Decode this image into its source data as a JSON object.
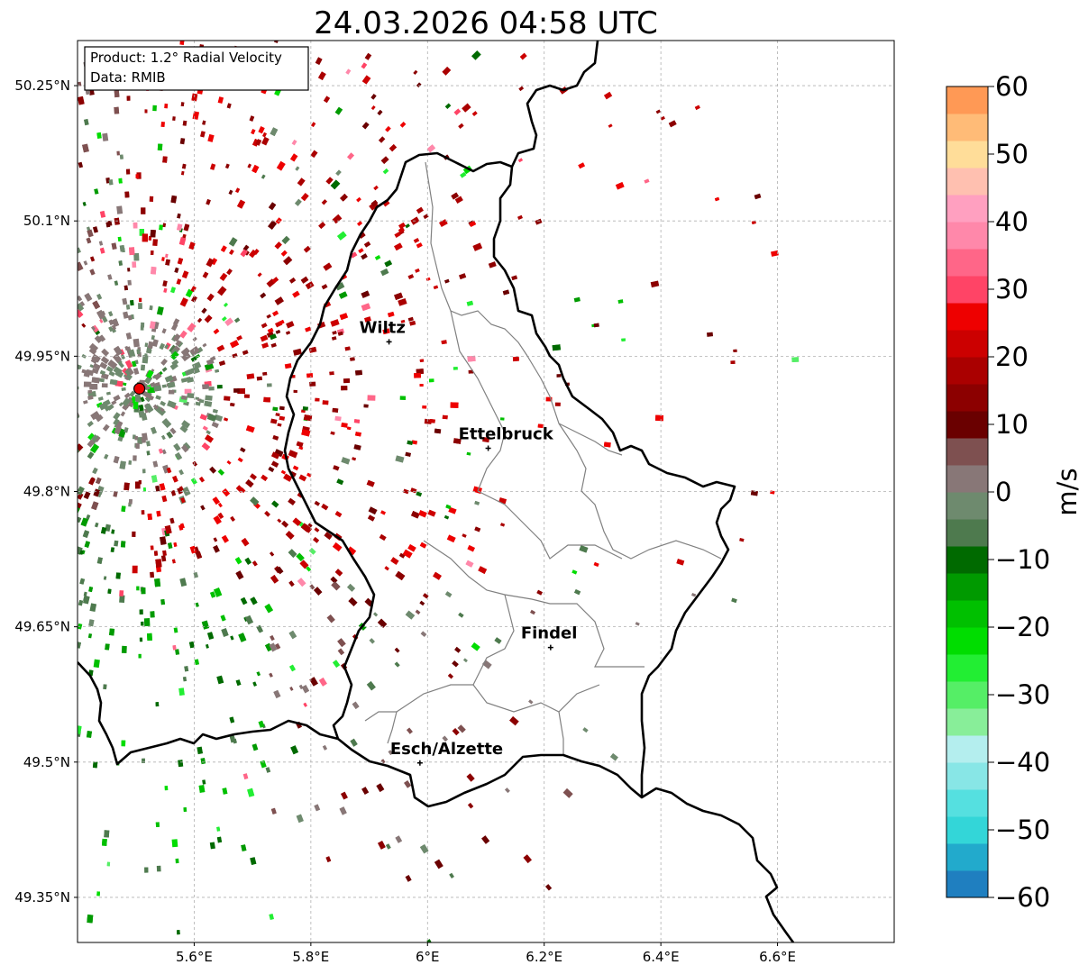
{
  "title": "24.03.2026 04:58 UTC",
  "info_box": {
    "product": "Product: 1.2° Radial Velocity",
    "data": "Data: RMIB"
  },
  "map": {
    "lon_range": [
      5.4,
      6.8
    ],
    "lat_range": [
      49.3,
      50.3
    ],
    "lon_ticks": [
      {
        "value": 5.6,
        "label": "5.6°E"
      },
      {
        "value": 5.8,
        "label": "5.8°E"
      },
      {
        "value": 6.0,
        "label": "6°E"
      },
      {
        "value": 6.2,
        "label": "6.2°E"
      },
      {
        "value": 6.4,
        "label": "6.4°E"
      },
      {
        "value": 6.6,
        "label": "6.6°E"
      }
    ],
    "lat_ticks": [
      {
        "value": 50.25,
        "label": "50.25°N"
      },
      {
        "value": 50.1,
        "label": "50.1°N"
      },
      {
        "value": 49.95,
        "label": "49.95°N"
      },
      {
        "value": 49.8,
        "label": "49.8°N"
      },
      {
        "value": 49.65,
        "label": "49.65°N"
      },
      {
        "value": 49.5,
        "label": "49.5°N"
      },
      {
        "value": 49.35,
        "label": "49.35°N"
      }
    ],
    "gridlines": true,
    "radar_site": {
      "lon": 5.506,
      "lat": 49.914
    },
    "cities": [
      {
        "name": "Wiltz",
        "lon": 5.934,
        "lat": 49.966
      },
      {
        "name": "Ettelbruck",
        "lon": 6.104,
        "lat": 49.848
      },
      {
        "name": "Findel",
        "lon": 6.211,
        "lat": 49.627
      },
      {
        "name": "Esch/Alzette",
        "lon": 5.987,
        "lat": 49.499
      }
    ]
  },
  "colorbar": {
    "label": "m/s",
    "min": -60,
    "max": 60,
    "ticks": [
      {
        "value": 60,
        "label": "60"
      },
      {
        "value": 50,
        "label": "50"
      },
      {
        "value": 40,
        "label": "40"
      },
      {
        "value": 30,
        "label": "30"
      },
      {
        "value": 20,
        "label": "20"
      },
      {
        "value": 10,
        "label": "10"
      },
      {
        "value": 0,
        "label": "0"
      },
      {
        "value": -10,
        "label": "−10"
      },
      {
        "value": -20,
        "label": "−20"
      },
      {
        "value": -30,
        "label": "−30"
      },
      {
        "value": -40,
        "label": "−40"
      },
      {
        "value": -50,
        "label": "−50"
      },
      {
        "value": -60,
        "label": "−60"
      }
    ],
    "bands": [
      {
        "from": -60,
        "to": -56,
        "color": "#1f7fc0"
      },
      {
        "from": -56,
        "to": -52,
        "color": "#22aacc"
      },
      {
        "from": -52,
        "to": -48,
        "color": "#33d6d8"
      },
      {
        "from": -48,
        "to": -44,
        "color": "#55e0e0"
      },
      {
        "from": -44,
        "to": -40,
        "color": "#88e6e6"
      },
      {
        "from": -40,
        "to": -36,
        "color": "#b4eeee"
      },
      {
        "from": -36,
        "to": -32,
        "color": "#88ee99"
      },
      {
        "from": -32,
        "to": -28,
        "color": "#55ee66"
      },
      {
        "from": -28,
        "to": -24,
        "color": "#22ee33"
      },
      {
        "from": -24,
        "to": -20,
        "color": "#00dd00"
      },
      {
        "from": -20,
        "to": -16,
        "color": "#00c000"
      },
      {
        "from": -16,
        "to": -12,
        "color": "#009a00"
      },
      {
        "from": -12,
        "to": -8,
        "color": "#006a00"
      },
      {
        "from": -8,
        "to": -4,
        "color": "#4e7a4e"
      },
      {
        "from": -4,
        "to": 0,
        "color": "#6e8a6e"
      },
      {
        "from": 0,
        "to": 4,
        "color": "#887777"
      },
      {
        "from": 4,
        "to": 8,
        "color": "#7e5050"
      },
      {
        "from": 8,
        "to": 12,
        "color": "#6a0000"
      },
      {
        "from": 12,
        "to": 16,
        "color": "#8c0000"
      },
      {
        "from": 16,
        "to": 20,
        "color": "#aa0000"
      },
      {
        "from": 20,
        "to": 24,
        "color": "#cc0000"
      },
      {
        "from": 24,
        "to": 28,
        "color": "#ee0000"
      },
      {
        "from": 28,
        "to": 32,
        "color": "#ff4466"
      },
      {
        "from": 32,
        "to": 36,
        "color": "#ff6688"
      },
      {
        "from": 36,
        "to": 40,
        "color": "#ff88aa"
      },
      {
        "from": 40,
        "to": 44,
        "color": "#ffa0c0"
      },
      {
        "from": 44,
        "to": 48,
        "color": "#ffc0b0"
      },
      {
        "from": 48,
        "to": 52,
        "color": "#ffdd99"
      },
      {
        "from": 52,
        "to": 56,
        "color": "#ffbb77"
      },
      {
        "from": 56,
        "to": 60,
        "color": "#ff9955"
      }
    ]
  }
}
